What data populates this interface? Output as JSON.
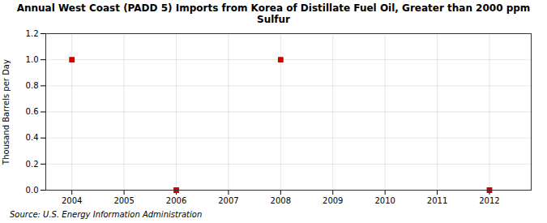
{
  "chart_data": {
    "type": "scatter",
    "title": "Annual West Coast (PADD 5) Imports from Korea of Distillate Fuel Oil, Greater than 2000 ppm\nSulfur",
    "y_label": "Thousand Barrels per Day",
    "source": "Source: U.S. Energy Information Administration",
    "x": [
      2004,
      2006,
      2008,
      2012
    ],
    "values": [
      1.0,
      0.0,
      1.0,
      0.0
    ],
    "color": "#cc0000",
    "marker": "square",
    "xlim": [
      2003.5,
      2012.8
    ],
    "xticks": [
      2004,
      2005,
      2006,
      2007,
      2008,
      2009,
      2010,
      2011,
      2012
    ],
    "ylim": [
      0.0,
      1.2
    ],
    "yticks": [
      {
        "value": 0.0,
        "label": "0.0"
      },
      0.2,
      0.4,
      0.6,
      0.8,
      {
        "value": 1.0,
        "label": "1.0"
      },
      1.2
    ],
    "grid": true
  }
}
